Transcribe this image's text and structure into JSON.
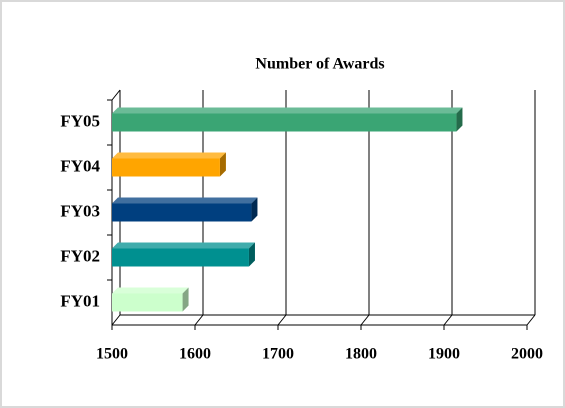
{
  "chart_data": {
    "type": "bar",
    "orientation": "horizontal",
    "title": "Number of Awards",
    "categories": [
      "FY05",
      "FY04",
      "FY03",
      "FY02",
      "FY01"
    ],
    "values": [
      1915,
      1630,
      1668,
      1665,
      1585
    ],
    "colors": [
      "#3aa574",
      "#ffa500",
      "#003f7f",
      "#009090",
      "#ccffcc"
    ],
    "xlim": [
      1500,
      2000
    ],
    "xticks": [
      1500,
      1600,
      1700,
      1800,
      1900,
      2000
    ],
    "grid": true
  }
}
